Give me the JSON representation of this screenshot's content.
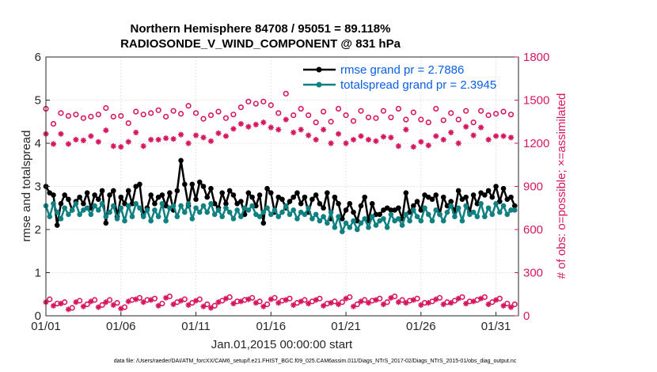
{
  "chart_data": {
    "type": "line",
    "title": "Northern Hemisphere 84708 / 95051 = 89.118%",
    "subtitle": "RADIOSONDE_V_WIND_COMPONENT @ 831 hPa",
    "xlabel": "Jan.01,2015 00:00:00 start",
    "ylabel": "rmse and totalspread",
    "ylabel_right": "# of obs: o=possible; ×=assimilated",
    "xlim": [
      0,
      31.5
    ],
    "ylim": [
      0,
      6
    ],
    "ylim_right": [
      0,
      1800
    ],
    "xtick_values": [
      0,
      5,
      10,
      15,
      20,
      25,
      30
    ],
    "xtick_labels": [
      "01/01",
      "01/06",
      "01/11",
      "01/16",
      "01/21",
      "01/26",
      "01/31"
    ],
    "ytick_values": [
      0,
      1,
      2,
      3,
      4,
      5,
      6
    ],
    "ytick_labels": [
      "0",
      "1",
      "2",
      "3",
      "4",
      "5",
      "6"
    ],
    "ytick_right_values": [
      0,
      300,
      600,
      900,
      1200,
      1500,
      1800
    ],
    "ytick_right_labels": [
      "0",
      "300",
      "600",
      "900",
      "1200",
      "1500",
      "1800"
    ],
    "grid": true,
    "legend_position": "top-right",
    "series": [
      {
        "name": "rmse grand pr = 2.7886",
        "color": "#000000",
        "axis": "left",
        "marker": "filled-circle",
        "x": [
          0.0,
          0.25,
          0.5,
          0.75,
          1.0,
          1.25,
          1.5,
          1.75,
          2.0,
          2.25,
          2.5,
          2.75,
          3.0,
          3.25,
          3.5,
          3.75,
          4.0,
          4.25,
          4.5,
          4.75,
          5.0,
          5.25,
          5.5,
          5.75,
          6.0,
          6.25,
          6.5,
          6.75,
          7.0,
          7.25,
          7.5,
          7.75,
          8.0,
          8.25,
          8.5,
          8.75,
          9.0,
          9.25,
          9.5,
          9.75,
          10.0,
          10.25,
          10.5,
          10.75,
          11.0,
          11.25,
          11.5,
          11.75,
          12.0,
          12.25,
          12.5,
          12.75,
          13.0,
          13.25,
          13.5,
          13.75,
          14.0,
          14.25,
          14.5,
          14.75,
          15.0,
          15.25,
          15.5,
          15.75,
          16.0,
          16.25,
          16.5,
          16.75,
          17.0,
          17.25,
          17.5,
          17.75,
          18.0,
          18.25,
          18.5,
          18.75,
          19.0,
          19.25,
          19.5,
          19.75,
          20.0,
          20.25,
          20.5,
          20.75,
          21.0,
          21.25,
          21.5,
          21.75,
          22.0,
          22.25,
          22.5,
          22.75,
          23.0,
          23.25,
          23.5,
          23.75,
          24.0,
          24.25,
          24.5,
          24.75,
          25.0,
          25.25,
          25.5,
          25.75,
          26.0,
          26.25,
          26.5,
          26.75,
          27.0,
          27.25,
          27.5,
          27.75,
          28.0,
          28.25,
          28.5,
          28.75,
          29.0,
          29.25,
          29.5,
          29.75,
          30.0,
          30.25,
          30.5,
          30.75,
          31.0,
          31.25
        ],
        "values": [
          3.0,
          2.85,
          2.8,
          2.1,
          2.6,
          2.8,
          2.7,
          2.45,
          2.65,
          2.75,
          2.6,
          2.85,
          2.5,
          2.8,
          2.7,
          2.9,
          2.15,
          2.8,
          2.9,
          2.3,
          2.75,
          2.6,
          2.9,
          2.6,
          3.0,
          3.05,
          2.35,
          2.5,
          2.8,
          2.6,
          2.75,
          2.8,
          2.55,
          2.85,
          2.45,
          2.9,
          3.6,
          3.05,
          2.55,
          3.05,
          2.7,
          3.1,
          3.0,
          2.75,
          2.95,
          2.6,
          2.5,
          2.85,
          2.6,
          2.9,
          2.8,
          2.6,
          2.65,
          2.35,
          2.85,
          2.75,
          2.55,
          2.8,
          2.15,
          2.95,
          2.85,
          2.4,
          2.75,
          2.7,
          2.5,
          2.65,
          2.75,
          2.85,
          2.6,
          2.75,
          2.4,
          2.7,
          2.8,
          2.6,
          2.5,
          2.85,
          2.25,
          2.75,
          2.6,
          2.25,
          2.45,
          2.6,
          2.4,
          2.2,
          2.55,
          2.75,
          2.2,
          2.6,
          2.35,
          2.35,
          2.45,
          2.5,
          2.45,
          2.45,
          2.5,
          2.25,
          2.85,
          2.4,
          2.55,
          2.65,
          2.45,
          2.8,
          2.75,
          2.7,
          2.8,
          2.35,
          2.75,
          2.55,
          2.65,
          2.4,
          2.9,
          2.7,
          2.75,
          2.4,
          2.8,
          2.6,
          2.85,
          2.8,
          2.9,
          2.75,
          3.0,
          2.65,
          2.95,
          2.7,
          2.75,
          2.55
        ]
      },
      {
        "name": "totalspread grand pr = 2.3945",
        "color": "#108080",
        "axis": "left",
        "marker": "filled-circle",
        "x": [
          0.0,
          0.25,
          0.5,
          0.75,
          1.0,
          1.25,
          1.5,
          1.75,
          2.0,
          2.25,
          2.5,
          2.75,
          3.0,
          3.25,
          3.5,
          3.75,
          4.0,
          4.25,
          4.5,
          4.75,
          5.0,
          5.25,
          5.5,
          5.75,
          6.0,
          6.25,
          6.5,
          6.75,
          7.0,
          7.25,
          7.5,
          7.75,
          8.0,
          8.25,
          8.5,
          8.75,
          9.0,
          9.25,
          9.5,
          9.75,
          10.0,
          10.25,
          10.5,
          10.75,
          11.0,
          11.25,
          11.5,
          11.75,
          12.0,
          12.25,
          12.5,
          12.75,
          13.0,
          13.25,
          13.5,
          13.75,
          14.0,
          14.25,
          14.5,
          14.75,
          15.0,
          15.25,
          15.5,
          15.75,
          16.0,
          16.25,
          16.5,
          16.75,
          17.0,
          17.25,
          17.5,
          17.75,
          18.0,
          18.25,
          18.5,
          18.75,
          19.0,
          19.25,
          19.5,
          19.75,
          20.0,
          20.25,
          20.5,
          20.75,
          21.0,
          21.25,
          21.5,
          21.75,
          22.0,
          22.25,
          22.5,
          22.75,
          23.0,
          23.25,
          23.5,
          23.75,
          24.0,
          24.25,
          24.5,
          24.75,
          25.0,
          25.25,
          25.5,
          25.75,
          26.0,
          26.25,
          26.5,
          26.75,
          27.0,
          27.25,
          27.5,
          27.75,
          28.0,
          28.25,
          28.5,
          28.75,
          29.0,
          29.25,
          29.5,
          29.75,
          30.0,
          30.25,
          30.5,
          30.75,
          31.0,
          31.25
        ],
        "values": [
          2.55,
          2.3,
          2.6,
          2.4,
          2.25,
          2.5,
          2.35,
          2.45,
          2.6,
          2.35,
          2.45,
          2.5,
          2.35,
          2.55,
          2.45,
          2.6,
          2.3,
          2.4,
          2.55,
          2.25,
          2.5,
          2.2,
          2.55,
          2.3,
          2.6,
          2.5,
          2.3,
          2.45,
          2.2,
          2.45,
          2.3,
          2.6,
          2.2,
          2.5,
          2.55,
          2.3,
          2.55,
          2.4,
          2.6,
          2.25,
          2.5,
          2.4,
          2.55,
          2.4,
          2.6,
          2.35,
          2.45,
          2.3,
          2.5,
          2.4,
          2.25,
          2.45,
          2.3,
          2.5,
          2.45,
          2.55,
          2.35,
          2.3,
          2.4,
          2.5,
          2.35,
          2.45,
          2.3,
          2.4,
          2.55,
          2.35,
          2.45,
          2.25,
          2.4,
          2.35,
          2.5,
          2.25,
          2.35,
          2.2,
          2.3,
          2.15,
          2.4,
          2.05,
          2.3,
          1.95,
          2.15,
          2.05,
          2.2,
          2.0,
          2.15,
          2.25,
          2.05,
          2.3,
          2.1,
          2.2,
          2.25,
          2.05,
          2.35,
          2.2,
          2.25,
          2.1,
          2.35,
          2.2,
          2.45,
          2.3,
          2.2,
          2.5,
          2.35,
          2.2,
          2.45,
          2.35,
          2.2,
          2.4,
          2.55,
          2.3,
          2.5,
          2.2,
          2.55,
          2.35,
          2.4,
          2.3,
          2.6,
          2.3,
          2.5,
          2.35,
          2.6,
          2.4,
          2.55,
          2.35,
          2.45,
          2.45
        ]
      },
      {
        "name": "obs possible",
        "color": "#d6175f",
        "axis": "right",
        "marker": "open-circle",
        "x": [
          0.0,
          0.5,
          1.0,
          1.5,
          2.0,
          2.5,
          3.0,
          3.5,
          4.0,
          4.5,
          5.0,
          5.5,
          6.0,
          6.5,
          7.0,
          7.5,
          8.0,
          8.5,
          9.0,
          9.5,
          10.0,
          10.5,
          11.0,
          11.5,
          12.0,
          12.5,
          13.0,
          13.5,
          14.0,
          14.5,
          15.0,
          15.5,
          16.0,
          16.5,
          17.0,
          17.5,
          18.0,
          18.5,
          19.0,
          19.5,
          20.0,
          20.5,
          21.0,
          21.5,
          22.0,
          22.5,
          23.0,
          23.5,
          24.0,
          24.5,
          25.0,
          25.5,
          26.0,
          26.5,
          27.0,
          27.5,
          28.0,
          28.5,
          29.0,
          29.5,
          30.0,
          30.5,
          31.0
        ],
        "values": [
          1440,
          1335,
          1410,
          1390,
          1400,
          1375,
          1385,
          1400,
          1445,
          1385,
          1390,
          1340,
          1420,
          1400,
          1410,
          1430,
          1385,
          1425,
          1405,
          1460,
          1410,
          1370,
          1395,
          1420,
          1375,
          1400,
          1450,
          1490,
          1475,
          1490,
          1465,
          1410,
          1545,
          1395,
          1440,
          1395,
          1345,
          1420,
          1350,
          1440,
          1395,
          1355,
          1425,
          1380,
          1375,
          1425,
          1380,
          1440,
          1365,
          1415,
          1365,
          1345,
          1440,
          1360,
          1410,
          1365,
          1425,
          1345,
          1425,
          1395,
          1405,
          1420,
          1400
        ]
      },
      {
        "name": "obs assimilated",
        "color": "#d6175f",
        "axis": "right",
        "marker": "asterisk",
        "x": [
          0.0,
          0.5,
          1.0,
          1.5,
          2.0,
          2.5,
          3.0,
          3.5,
          4.0,
          4.5,
          5.0,
          5.5,
          6.0,
          6.5,
          7.0,
          7.5,
          8.0,
          8.5,
          9.0,
          9.5,
          10.0,
          10.5,
          11.0,
          11.5,
          12.0,
          12.5,
          13.0,
          13.5,
          14.0,
          14.5,
          15.0,
          15.5,
          16.0,
          16.5,
          17.0,
          17.5,
          18.0,
          18.5,
          19.0,
          19.5,
          20.0,
          20.5,
          21.0,
          21.5,
          22.0,
          22.5,
          23.0,
          23.5,
          24.0,
          24.5,
          25.0,
          25.5,
          26.0,
          26.5,
          27.0,
          27.5,
          28.0,
          28.5,
          29.0,
          29.5,
          30.0,
          30.5,
          31.0
        ],
        "values": [
          1265,
          1195,
          1265,
          1195,
          1225,
          1220,
          1250,
          1210,
          1290,
          1180,
          1175,
          1210,
          1275,
          1180,
          1225,
          1225,
          1235,
          1230,
          1260,
          1200,
          1255,
          1240,
          1215,
          1270,
          1250,
          1300,
          1335,
          1315,
          1330,
          1345,
          1310,
          1295,
          1365,
          1275,
          1295,
          1255,
          1225,
          1295,
          1200,
          1265,
          1200,
          1225,
          1250,
          1225,
          1215,
          1245,
          1240,
          1180,
          1295,
          1175,
          1210,
          1185,
          1250,
          1225,
          1275,
          1200,
          1315,
          1255,
          1310,
          1225,
          1250,
          1250,
          1240
        ]
      },
      {
        "name": "obs possible (lower)",
        "color": "#d6175f",
        "axis": "right",
        "marker": "open-circle",
        "x": [
          0.25,
          0.75,
          1.25,
          1.75,
          2.25,
          2.75,
          3.25,
          3.75,
          4.25,
          4.75,
          5.25,
          5.75,
          6.25,
          6.75,
          7.25,
          7.75,
          8.25,
          8.75,
          9.25,
          9.75,
          10.25,
          10.75,
          11.25,
          11.75,
          12.25,
          12.75,
          13.25,
          13.75,
          14.25,
          14.75,
          15.25,
          15.75,
          16.25,
          16.75,
          17.25,
          17.75,
          18.25,
          18.75,
          19.25,
          19.75,
          20.25,
          20.75,
          21.25,
          21.75,
          22.25,
          22.75,
          23.25,
          23.75,
          24.25,
          24.75,
          25.25,
          25.75,
          26.25,
          26.75,
          27.25,
          27.75,
          28.25,
          28.75,
          29.25,
          29.75,
          30.25,
          30.75,
          31.25
        ],
        "values": [
          115,
          85,
          95,
          55,
          105,
          80,
          110,
          75,
          110,
          90,
          60,
          110,
          125,
          110,
          120,
          85,
          135,
          95,
          115,
          90,
          115,
          80,
          70,
          105,
          130,
          100,
          110,
          125,
          100,
          80,
          125,
          105,
          120,
          90,
          110,
          100,
          120,
          85,
          100,
          95,
          130,
          80,
          110,
          105,
          120,
          95,
          135,
          110,
          105,
          120,
          90,
          100,
          125,
          95,
          105,
          130,
          100,
          110,
          130,
          95,
          120,
          85,
          80
        ]
      },
      {
        "name": "obs assimilated (lower)",
        "color": "#d6175f",
        "axis": "right",
        "marker": "asterisk",
        "x": [
          0.0,
          0.5,
          1.0,
          1.5,
          2.0,
          2.5,
          3.0,
          3.5,
          4.0,
          4.5,
          5.0,
          5.5,
          6.0,
          6.5,
          7.0,
          7.5,
          8.0,
          8.5,
          9.0,
          9.5,
          10.0,
          10.5,
          11.0,
          11.5,
          12.0,
          12.5,
          13.0,
          13.5,
          14.0,
          14.5,
          15.0,
          15.5,
          16.0,
          16.5,
          17.0,
          17.5,
          18.0,
          18.5,
          19.0,
          19.5,
          20.0,
          20.5,
          21.0,
          21.5,
          22.0,
          22.5,
          23.0,
          23.5,
          24.0,
          24.5,
          25.0,
          25.5,
          26.0,
          26.5,
          27.0,
          27.5,
          28.0,
          28.5,
          29.0,
          29.5,
          30.0,
          30.5,
          31.0
        ],
        "values": [
          95,
          70,
          85,
          45,
          95,
          65,
          100,
          60,
          95,
          75,
          50,
          100,
          115,
          95,
          110,
          70,
          125,
          80,
          105,
          75,
          105,
          65,
          55,
          95,
          120,
          85,
          100,
          115,
          90,
          65,
          115,
          90,
          110,
          75,
          100,
          85,
          110,
          70,
          90,
          80,
          120,
          65,
          100,
          90,
          110,
          80,
          125,
          95,
          90,
          110,
          75,
          90,
          115,
          80,
          90,
          120,
          85,
          100,
          120,
          80,
          110,
          70,
          60
        ]
      }
    ]
  },
  "footer": {
    "datafile": "data file: /Users/raeder/DAI/ATM_forcXX/CAM6_setup/f.e21.FHIST_BGC.f09_025.CAM6assim.011/Diags_NTrS_2017-02/Diags_NTrS_2015-01/obs_diag_output.nc"
  }
}
